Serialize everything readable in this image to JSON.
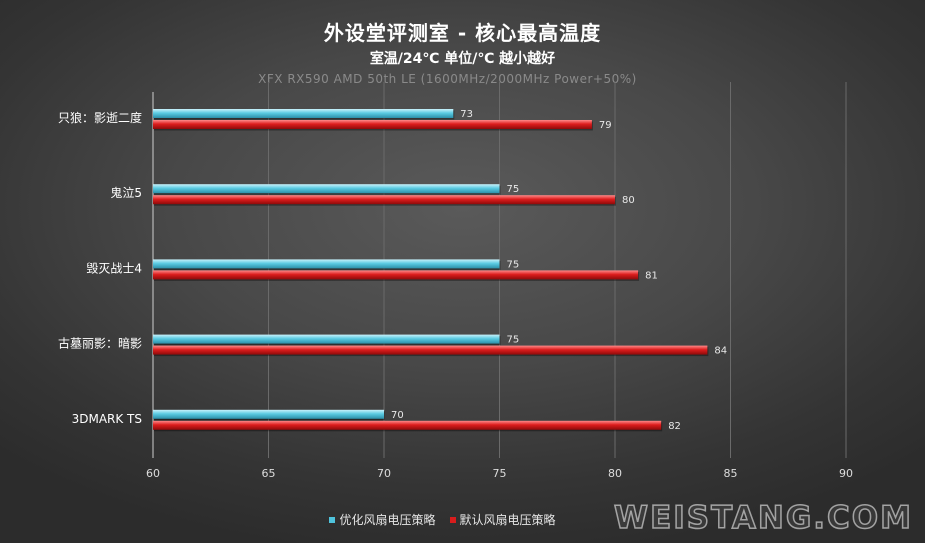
{
  "chart_data": {
    "type": "bar",
    "orientation": "horizontal",
    "title": "外设堂评测室 -  核心最高温度",
    "subtitle": "室温/24℃  单位/℃  越小越好",
    "note": "XFX RX590 AMD 50th LE (1600MHz/2000MHz  Power+50%)",
    "categories": [
      "只狼：影逝二度",
      "鬼泣5",
      "毁灭战士4",
      "古墓丽影：暗影",
      "3DMARK TS"
    ],
    "series": [
      {
        "name": "优化风扇电压策略",
        "color": "#4fc3dc",
        "values": [
          73,
          75,
          75,
          75,
          70
        ]
      },
      {
        "name": "默认风扇电压策略",
        "color": "#d81c1c",
        "values": [
          79,
          80,
          81,
          84,
          82
        ]
      }
    ],
    "xlim": [
      60,
      90
    ],
    "xticks": [
      "60",
      "65",
      "70",
      "75",
      "80",
      "85",
      "90"
    ],
    "grid": true,
    "legend_position": "bottom"
  },
  "watermark": "WEISTANG.COM"
}
